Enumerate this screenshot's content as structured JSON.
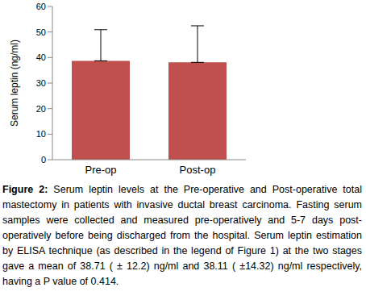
{
  "chart_data": {
    "type": "bar",
    "categories": [
      "Pre-op",
      "Post-op"
    ],
    "values": [
      38.71,
      38.11
    ],
    "errors": [
      12.2,
      14.32
    ],
    "color": "#c0504d",
    "ylabel": "Serum leptin (ng/ml)",
    "ylim": [
      0,
      60
    ],
    "yticks": [
      0,
      10,
      20,
      30,
      40,
      50,
      60
    ],
    "grid": false,
    "caption_label": "Figure 2:",
    "caption": "Serum leptin levels at the Pre-operative and Post-operative total mastectomy in patients with invasive ductal breast carcinoma. Fasting serum samples were collected and measured pre-operatively and 5-7 days post-operatively before being discharged from the hospital.  Serum leptin estimation by ELISA technique (as described in the legend of Figure 1) at the two stages gave a mean of 38.71 ( ± 12.2) ng/ml and 38.11 ( ±14.32) ng/ml respectively, having a P value of 0.414."
  }
}
